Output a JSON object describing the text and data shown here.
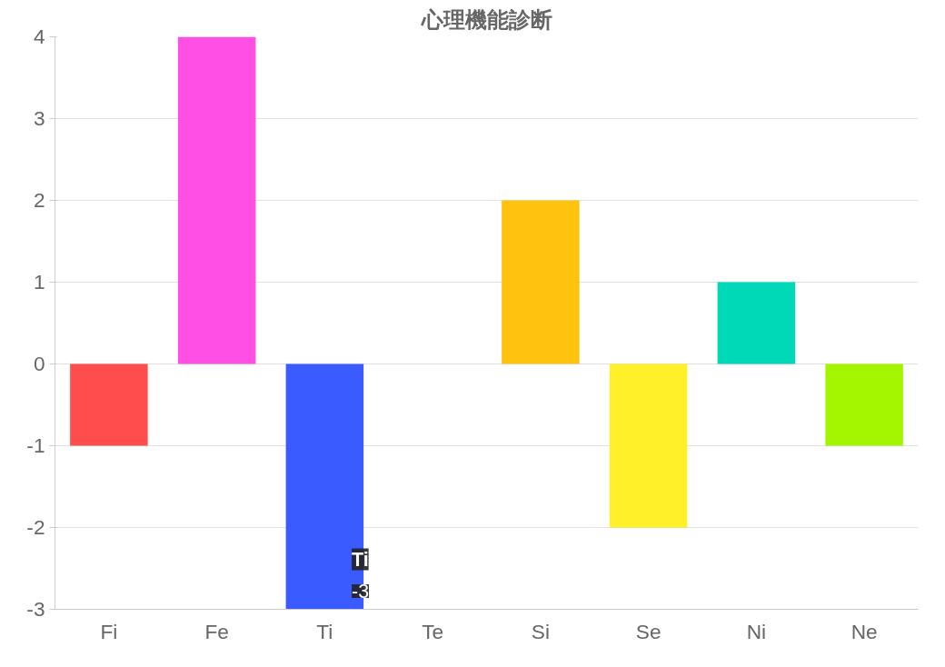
{
  "chart_data": {
    "type": "bar",
    "title": "心理機能診断",
    "categories": [
      "Fi",
      "Fe",
      "Ti",
      "Te",
      "Si",
      "Se",
      "Ni",
      "Ne"
    ],
    "values": [
      -1,
      4,
      -3,
      0,
      2,
      -2,
      1,
      -1
    ],
    "colors": [
      "#ff4d4d",
      "#ff4fe4",
      "#3a5bff",
      "#4dc3ff",
      "#ffc20e",
      "#fff02a",
      "#00d9b8",
      "#a3f500"
    ],
    "ylim": [
      -3,
      4
    ],
    "yticks": [
      -3,
      -2,
      -1,
      0,
      1,
      2,
      3,
      4
    ],
    "grid": "y",
    "annotations": [
      "Ti",
      {
        "text": "-3",
        "x": "Ti",
        "y": -3
      }
    ]
  }
}
